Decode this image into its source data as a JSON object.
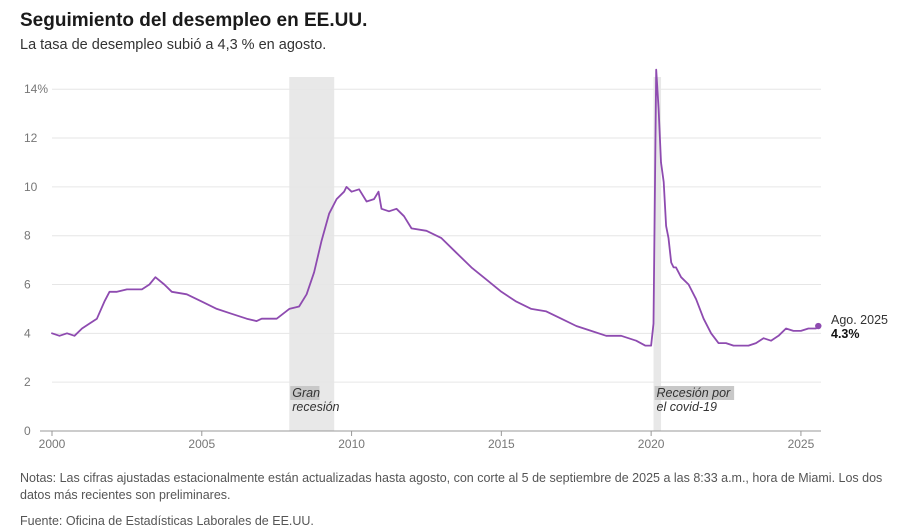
{
  "header": {
    "title": "Seguimiento del desempleo en EE.UU.",
    "subtitle": "La tasa de desempleo subió a 4,3 % en agosto."
  },
  "footer": {
    "notes": "Notas: Las cifras ajustadas estacionalmente están actualizadas hasta agosto, con corte al 5 de septiembre de 2025 a las 8:33 a.m., hora de Miami. Los dos datos más recientes son preliminares.",
    "source": "Fuente: Oficina de Estadísticas Laborales de EE.UU."
  },
  "colors": {
    "line": "#8e4bb0",
    "recession": "#e8e8e8",
    "grid": "#e6e6e6",
    "axis": "#999999",
    "label_bg": "#c8c8c8"
  },
  "chart_data": {
    "type": "line",
    "title": "Seguimiento del desempleo en EE.UU.",
    "xlabel": "",
    "ylabel": "",
    "xlim": [
      2000,
      2025.67
    ],
    "ylim": [
      0,
      14.5
    ],
    "grid": true,
    "y_ticks": [
      {
        "value": 0,
        "label": "0"
      },
      {
        "value": 2,
        "label": "2"
      },
      {
        "value": 4,
        "label": "4"
      },
      {
        "value": 6,
        "label": "6"
      },
      {
        "value": 8,
        "label": "8"
      },
      {
        "value": 10,
        "label": "10"
      },
      {
        "value": 12,
        "label": "12"
      },
      {
        "value": 14,
        "label": "14%"
      }
    ],
    "x_ticks": [
      {
        "value": 2000,
        "label": "2000"
      },
      {
        "value": 2005,
        "label": "2005"
      },
      {
        "value": 2010,
        "label": "2010"
      },
      {
        "value": 2015,
        "label": "2015"
      },
      {
        "value": 2020,
        "label": "2020"
      },
      {
        "value": 2025,
        "label": "2025"
      }
    ],
    "recessions": [
      {
        "start": 2007.92,
        "end": 2009.42,
        "label_lines": [
          "Gran",
          "recesión"
        ]
      },
      {
        "start": 2020.08,
        "end": 2020.33,
        "label_lines": [
          "Recesión por",
          "el covid-19"
        ]
      }
    ],
    "end_annotation": {
      "date_label": "Ago. 2025",
      "value_label": "4.3%",
      "x": 2025.58,
      "y": 4.3
    },
    "series": [
      {
        "name": "Tasa de desempleo",
        "x": [
          2000.0,
          2000.25,
          2000.5,
          2000.75,
          2001.0,
          2001.25,
          2001.5,
          2001.75,
          2001.92,
          2002.17,
          2002.5,
          2002.75,
          2003.0,
          2003.25,
          2003.45,
          2003.75,
          2004.0,
          2004.5,
          2005.0,
          2005.5,
          2006.0,
          2006.5,
          2006.83,
          2007.0,
          2007.5,
          2007.92,
          2008.25,
          2008.5,
          2008.75,
          2009.0,
          2009.25,
          2009.5,
          2009.75,
          2009.83,
          2010.0,
          2010.25,
          2010.5,
          2010.75,
          2010.9,
          2011.0,
          2011.25,
          2011.5,
          2011.75,
          2012.0,
          2012.5,
          2013.0,
          2013.5,
          2014.0,
          2014.5,
          2015.0,
          2015.5,
          2016.0,
          2016.5,
          2017.0,
          2017.5,
          2018.0,
          2018.5,
          2019.0,
          2019.5,
          2019.8,
          2020.0,
          2020.08,
          2020.17,
          2020.25,
          2020.33,
          2020.42,
          2020.5,
          2020.58,
          2020.67,
          2020.75,
          2020.83,
          2021.0,
          2021.25,
          2021.5,
          2021.75,
          2022.0,
          2022.25,
          2022.5,
          2022.75,
          2023.0,
          2023.25,
          2023.5,
          2023.75,
          2024.0,
          2024.25,
          2024.5,
          2024.75,
          2025.0,
          2025.25,
          2025.5,
          2025.58
        ],
        "values": [
          4.0,
          3.9,
          4.0,
          3.9,
          4.2,
          4.4,
          4.6,
          5.3,
          5.7,
          5.7,
          5.8,
          5.8,
          5.8,
          6.0,
          6.3,
          6.0,
          5.7,
          5.6,
          5.3,
          5.0,
          4.8,
          4.6,
          4.5,
          4.6,
          4.6,
          5.0,
          5.1,
          5.6,
          6.5,
          7.8,
          8.9,
          9.5,
          9.8,
          10.0,
          9.8,
          9.9,
          9.4,
          9.5,
          9.8,
          9.1,
          9.0,
          9.1,
          8.8,
          8.3,
          8.2,
          7.9,
          7.3,
          6.7,
          6.2,
          5.7,
          5.3,
          5.0,
          4.9,
          4.6,
          4.3,
          4.1,
          3.9,
          3.9,
          3.7,
          3.5,
          3.5,
          4.4,
          14.8,
          13.2,
          11.0,
          10.2,
          8.4,
          7.9,
          6.9,
          6.7,
          6.7,
          6.3,
          6.0,
          5.4,
          4.6,
          4.0,
          3.6,
          3.6,
          3.5,
          3.5,
          3.5,
          3.6,
          3.8,
          3.7,
          3.9,
          4.2,
          4.1,
          4.1,
          4.2,
          4.2,
          4.3
        ]
      }
    ]
  }
}
